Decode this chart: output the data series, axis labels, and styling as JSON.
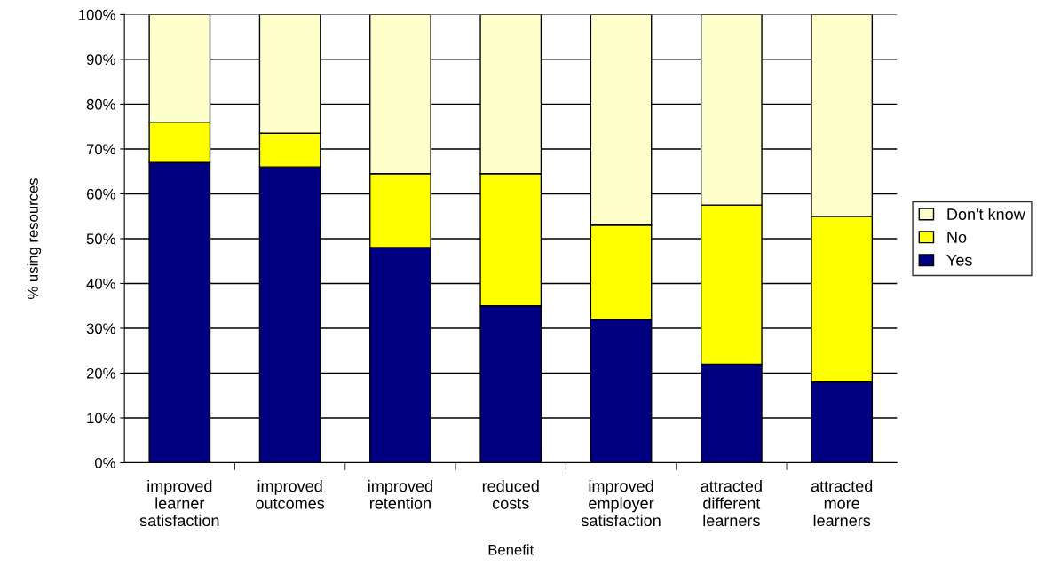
{
  "chart_data": {
    "type": "bar",
    "stacked": true,
    "xlabel": "Benefit",
    "ylabel": "% using resources",
    "categories": [
      "improved\nlearner\nsatisfaction",
      "improved\noutcomes",
      "improved\nretention",
      "reduced\ncosts",
      "improved\nemployer\nsatisfaction",
      "attracted\ndifferent\nlearners",
      "attracted\nmore\nlearners"
    ],
    "series": [
      {
        "name": "Yes",
        "color": "#000080",
        "values": [
          67,
          66,
          48,
          35,
          32,
          22,
          18
        ]
      },
      {
        "name": "No",
        "color": "#ffff00",
        "values": [
          9,
          7.5,
          16.5,
          29.5,
          21,
          35.5,
          37
        ]
      },
      {
        "name": "Don't know",
        "color": "#ffffcc",
        "values": [
          24,
          26.5,
          35.5,
          35.5,
          47,
          42.5,
          45
        ]
      }
    ],
    "ylim": [
      0,
      100
    ],
    "yticks": [
      {
        "value": 0,
        "label": "0%"
      },
      {
        "value": 10,
        "label": "10%"
      },
      {
        "value": 20,
        "label": "20%"
      },
      {
        "value": 30,
        "label": "30%"
      },
      {
        "value": 40,
        "label": "40%"
      },
      {
        "value": 50,
        "label": "50%"
      },
      {
        "value": 60,
        "label": "60%"
      },
      {
        "value": 70,
        "label": "70%"
      },
      {
        "value": 80,
        "label": "80%"
      },
      {
        "value": 90,
        "label": "90%"
      },
      {
        "value": 100,
        "label": "100%"
      }
    ],
    "grid": "y",
    "legend": "right"
  }
}
